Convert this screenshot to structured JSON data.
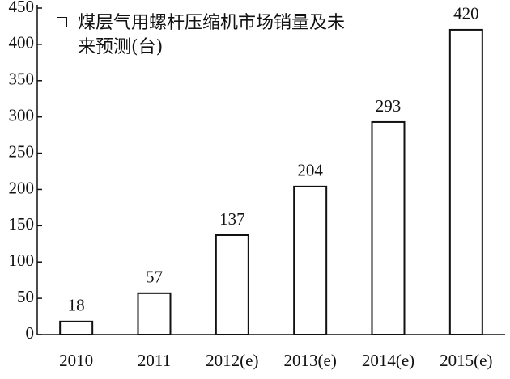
{
  "chart_data": {
    "type": "bar",
    "categories": [
      "2010",
      "2011",
      "2012(e)",
      "2013(e)",
      "2014(e)",
      "2015(e)"
    ],
    "series": [
      {
        "name": "煤层气用螺杆压缩机市场销量及未来预测(台)",
        "color": "#ffffff",
        "values": [
          18,
          57,
          137,
          204,
          293,
          420
        ]
      }
    ],
    "ylim": [
      0,
      450
    ],
    "yticks": [
      0,
      50,
      100,
      150,
      200,
      250,
      300,
      350,
      400,
      450
    ],
    "grid": false
  }
}
